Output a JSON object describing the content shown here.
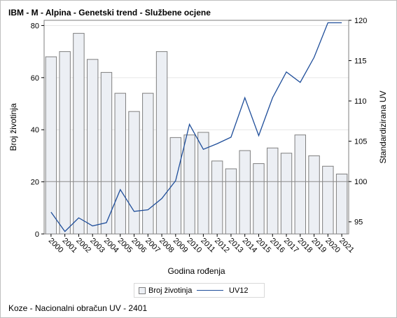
{
  "title": "IBM - M - Alpina - Genetski trend - Službene ocjene",
  "footnote": "Koze - Nacionalni obračun UV - 2401",
  "legend": {
    "bar_label": "Broj životinja",
    "line_label": "UV12"
  },
  "colors": {
    "bar_fill": "#eceff4",
    "bar_stroke": "#7f7f7f",
    "line": "#1f4e9a",
    "ref_line": "#8c8c8c",
    "grid": "#e6e6e6"
  },
  "chart_data": {
    "type": "bar",
    "title": "IBM - M - Alpina - Genetski trend - Službene ocjene",
    "xlabel": "Godina rođenja",
    "ylabel": "Broj životinja",
    "y2label": "Standardizirana UV",
    "categories": [
      "2000",
      "2001",
      "2002",
      "2003",
      "2004",
      "2005",
      "2006",
      "2007",
      "2008",
      "2009",
      "2010",
      "2011",
      "2012",
      "2013",
      "2014",
      "2015",
      "2016",
      "2017",
      "2018",
      "2019",
      "2020",
      "2021"
    ],
    "ylim": [
      0,
      82
    ],
    "yticks": [
      0,
      20,
      40,
      60,
      80
    ],
    "y2lim": [
      93.5,
      120
    ],
    "y2ticks": [
      95,
      100,
      105,
      110,
      115,
      120
    ],
    "reference_line_y2": 100,
    "grid": true,
    "legend_position": "bottom",
    "series": [
      {
        "name": "Broj životinja",
        "type": "bar",
        "axis": "left",
        "values": [
          68,
          70,
          77,
          67,
          62,
          54,
          47,
          54,
          70,
          37,
          38,
          39,
          28,
          25,
          32,
          27,
          33,
          31,
          38,
          30,
          26,
          23
        ]
      },
      {
        "name": "UV12",
        "type": "line",
        "axis": "right",
        "values": [
          96.2,
          93.8,
          95.5,
          94.5,
          94.9,
          99.0,
          96.3,
          96.5,
          97.9,
          100.1,
          107.1,
          104.0,
          104.7,
          105.5,
          110.4,
          105.7,
          110.4,
          113.6,
          112.3,
          115.4,
          119.7,
          119.7
        ]
      }
    ]
  }
}
